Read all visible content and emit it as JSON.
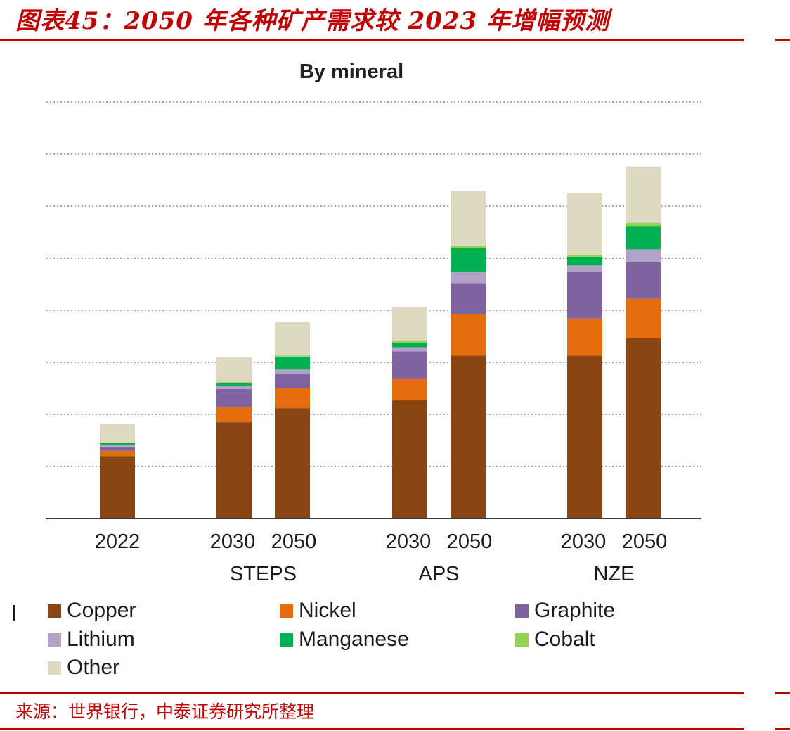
{
  "report": {
    "title": "图表45：2050 年各种矿产需求较 2023 年增幅预测",
    "source": "来源：世界银行，中泰证券研究所整理"
  },
  "chart_data": {
    "type": "bar",
    "stacked": true,
    "title": "By mineral",
    "xlabel": "",
    "ylabel": "",
    "grid": true,
    "legend_position": "bottom",
    "ylim": [
      0,
      8
    ],
    "categories": [
      "2022",
      "2030",
      "2050",
      "2030",
      "2050",
      "2030",
      "2050"
    ],
    "category_groups": [
      {
        "label": "",
        "members": [
          0
        ]
      },
      {
        "label": "STEPS",
        "members": [
          1,
          2
        ]
      },
      {
        "label": "APS",
        "members": [
          3,
          4
        ]
      },
      {
        "label": "NZE",
        "members": [
          5,
          6
        ]
      }
    ],
    "series": [
      {
        "name": "Copper",
        "color": "#8b4513",
        "values": [
          1.2,
          1.85,
          2.12,
          2.27,
          3.13,
          3.13,
          3.46
        ]
      },
      {
        "name": "Nickel",
        "color": "#e46c0a",
        "values": [
          0.1,
          0.29,
          0.39,
          0.42,
          0.79,
          0.71,
          0.76
        ]
      },
      {
        "name": "Graphite",
        "color": "#8064a2",
        "values": [
          0.08,
          0.35,
          0.27,
          0.52,
          0.6,
          0.9,
          0.7
        ]
      },
      {
        "name": "Lithium",
        "color": "#b3a2c7",
        "values": [
          0.04,
          0.06,
          0.08,
          0.08,
          0.22,
          0.12,
          0.25
        ]
      },
      {
        "name": "Manganese",
        "color": "#00b050",
        "values": [
          0.03,
          0.05,
          0.25,
          0.09,
          0.45,
          0.17,
          0.45
        ]
      },
      {
        "name": "Cobalt",
        "color": "#92d050",
        "values": [
          0.01,
          0.02,
          0.02,
          0.03,
          0.05,
          0.03,
          0.06
        ]
      },
      {
        "name": "Other",
        "color": "#ddd9c3",
        "values": [
          0.36,
          0.48,
          0.64,
          0.65,
          1.05,
          1.19,
          1.08
        ]
      }
    ]
  }
}
